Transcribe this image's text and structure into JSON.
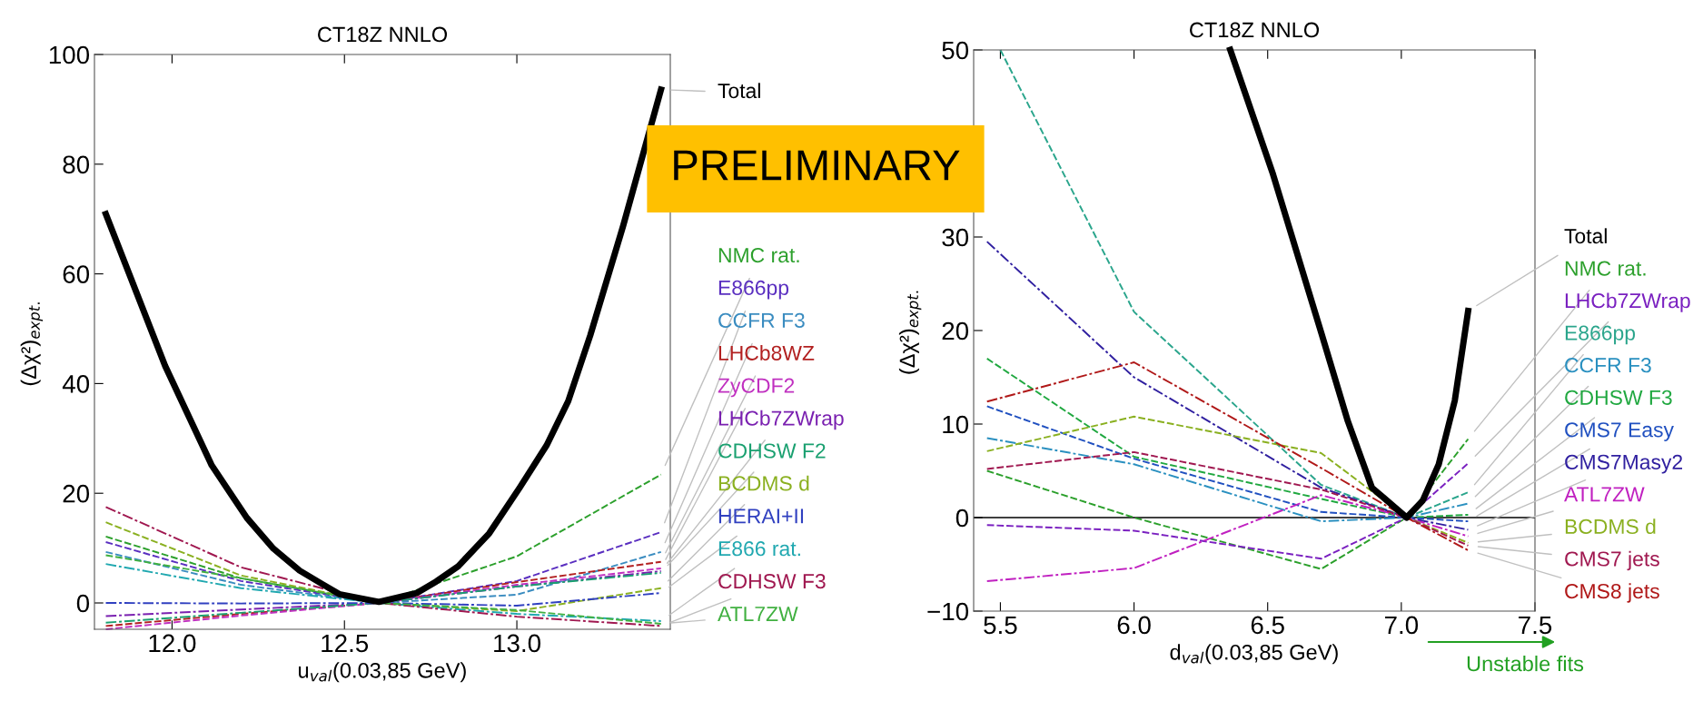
{
  "chart_data": [
    {
      "type": "line",
      "title": "CT18Z NNLO",
      "xlabel": "u$_{val}$(0.03,85 GeV)",
      "ylabel": "(Δχ²)$_{expt.}$",
      "xlim": [
        11.775,
        13.445
      ],
      "xticks": [
        {
          "value": 12.0,
          "label": "12.0"
        },
        {
          "value": 12.5,
          "label": "12.5"
        },
        {
          "value": 13.0,
          "label": "13.0"
        }
      ],
      "ylim": [
        -4.8,
        100
      ],
      "yticks": [
        0,
        20,
        40,
        60,
        80,
        100
      ],
      "grid": false,
      "legend": "right",
      "annotations": [
        "PRELIMINARY"
      ],
      "series": [
        {
          "name": "Total",
          "color": "#000000",
          "line_style": "solid",
          "x": [
            11.808,
            11.98,
            12.115,
            12.217,
            12.294,
            12.37,
            12.434,
            12.485,
            12.6,
            12.709,
            12.766,
            12.83,
            12.92,
            13.009,
            13.086,
            13.149,
            13.213,
            13.309,
            13.418
          ],
          "values": [
            70.9,
            43.2,
            25.1,
            15.5,
            9.9,
            5.9,
            3.5,
            1.6,
            0.2,
            1.8,
            3.9,
            6.7,
            12.7,
            21.1,
            28.7,
            36.8,
            48.8,
            68.9,
            93.6
          ]
        },
        {
          "name": "NMC rat.",
          "color": "#2ca02c",
          "line_style": "dashed",
          "x": [
            11.808,
            12.2,
            12.6,
            13.0,
            13.418
          ],
          "values": [
            12.1,
            4.5,
            0,
            8.5,
            23.4
          ]
        },
        {
          "name": "E866pp",
          "color": "#5a2fc0",
          "line_style": "dashed",
          "x": [
            11.808,
            12.2,
            12.6,
            13.0,
            13.418
          ],
          "values": [
            11.1,
            4.0,
            0,
            4.0,
            12.9
          ]
        },
        {
          "name": "CCFR F3",
          "color": "#3a8cc0",
          "line_style": "dashed",
          "x": [
            11.808,
            12.2,
            12.6,
            13.0,
            13.418
          ],
          "values": [
            9.3,
            3.3,
            0,
            1.5,
            9.3
          ]
        },
        {
          "name": "LHCb8WZ",
          "color": "#b22020",
          "line_style": "dashed",
          "x": [
            11.808,
            12.2,
            12.6,
            13.0,
            13.418
          ],
          "values": [
            -4.2,
            -2.0,
            0,
            3.8,
            7.5
          ]
        },
        {
          "name": "ZyCDF2",
          "color": "#c030c0",
          "line_style": "dashed",
          "x": [
            11.808,
            12.2,
            12.6,
            13.0,
            13.418
          ],
          "values": [
            -4.8,
            -2.3,
            0,
            3.3,
            6.3
          ]
        },
        {
          "name": "LHCb7ZWrap",
          "color": "#7a20b0",
          "line_style": "dashdot",
          "x": [
            11.808,
            12.2,
            12.6,
            13.0,
            13.418
          ],
          "values": [
            -2.4,
            -1.2,
            0,
            3.0,
            5.8
          ]
        },
        {
          "name": "CDHSW F2",
          "color": "#1aa070",
          "line_style": "dashdot",
          "x": [
            11.808,
            12.2,
            12.6,
            13.0,
            13.418
          ],
          "values": [
            -3.6,
            -1.8,
            0,
            3.0,
            5.5
          ]
        },
        {
          "name": "BCDMS d",
          "color": "#8ab020",
          "line_style": "dashed",
          "x": [
            11.808,
            12.2,
            12.6,
            13.0,
            13.418
          ],
          "values": [
            14.7,
            5.0,
            0,
            -1.5,
            2.7
          ]
        },
        {
          "name": "HERAI+II",
          "color": "#3040c0",
          "line_style": "dashdot",
          "x": [
            11.808,
            12.2,
            12.6,
            13.0,
            13.418
          ],
          "values": [
            0,
            -0.1,
            0,
            -0.5,
            1.8
          ]
        },
        {
          "name": "E866 rat.",
          "color": "#20a8b0",
          "line_style": "dashdot",
          "x": [
            11.808,
            12.2,
            12.6,
            13.0,
            13.418
          ],
          "values": [
            7.1,
            2.7,
            0,
            -2.0,
            -3.3
          ]
        },
        {
          "name": "CDHSW F3",
          "color": "#a01850",
          "line_style": "dashdot",
          "x": [
            11.808,
            12.2,
            12.6,
            13.0,
            13.418
          ],
          "values": [
            17.5,
            6.5,
            0,
            -2.5,
            -4.2
          ]
        },
        {
          "name": "ATL7ZW",
          "color": "#40b040",
          "line_style": "dashed",
          "x": [
            11.808,
            12.2,
            12.6,
            13.0,
            13.418
          ],
          "values": [
            8.7,
            4.5,
            0,
            -1.3,
            -3.8
          ]
        }
      ]
    },
    {
      "type": "line",
      "title": "CT18Z NNLO",
      "xlabel": "d$_{val}$(0.03,85 GeV)",
      "ylabel": "(Δχ²)$_{expt.}$",
      "xlim": [
        5.4,
        7.5
      ],
      "xticks": [
        {
          "value": 5.5,
          "label": "5.5"
        },
        {
          "value": 6.0,
          "label": "6.0"
        },
        {
          "value": 6.5,
          "label": "6.5"
        },
        {
          "value": 7.0,
          "label": "7.0"
        },
        {
          "value": 7.5,
          "label": "7.5"
        }
      ],
      "ylim": [
        -10,
        50
      ],
      "yticks": [
        {
          "value": -10,
          "label": "−10"
        },
        0,
        10,
        20,
        30,
        {
          "value": 40,
          "label": null
        },
        50
      ],
      "grid": false,
      "legend": "right",
      "ref_lines": [
        {
          "axis": "y",
          "value": 0,
          "color": "#000000"
        }
      ],
      "annotations": [
        "Unstable fits"
      ],
      "series": [
        {
          "name": "Total",
          "color": "#000000",
          "line_style": "solid",
          "x": [
            6.36,
            6.52,
            6.7,
            6.8,
            6.89,
            7.02,
            7.08,
            7.14,
            7.2,
            7.25
          ],
          "values": [
            50,
            36.7,
            19.8,
            10.3,
            3.2,
            0,
            1.8,
            5.7,
            12.5,
            22.1
          ]
        },
        {
          "name": "NMC rat.",
          "color": "#2ca02c",
          "line_style": "dashed",
          "x": [
            5.45,
            6.0,
            6.7,
            7.02,
            7.25
          ],
          "values": [
            5.0,
            0,
            -5.5,
            0,
            8.4
          ]
        },
        {
          "name": "LHCb7ZWrap",
          "color": "#7a20c0",
          "line_style": "dashed",
          "x": [
            5.45,
            6.0,
            6.7,
            7.02,
            7.25
          ],
          "values": [
            -0.8,
            -1.4,
            -4.4,
            0,
            5.8
          ]
        },
        {
          "name": "E866pp",
          "color": "#2aa58c",
          "line_style": "dashed",
          "x": [
            5.5,
            6.0,
            6.7,
            7.02,
            7.25
          ],
          "values": [
            50,
            22,
            3.5,
            0,
            2.7
          ]
        },
        {
          "name": "CCFR F3",
          "color": "#2a90c0",
          "line_style": "dashdot",
          "x": [
            5.45,
            6.0,
            6.7,
            7.02,
            7.25
          ],
          "values": [
            8.5,
            5.7,
            -0.4,
            0,
            1.5
          ]
        },
        {
          "name": "CDHSW F3",
          "color": "#20a840",
          "line_style": "dashed",
          "x": [
            5.45,
            6.0,
            6.7,
            7.02,
            7.25
          ],
          "values": [
            17,
            6.5,
            2.0,
            0,
            0.3
          ]
        },
        {
          "name": "CMS7 Easy",
          "color": "#2050c0",
          "line_style": "dashed",
          "x": [
            5.45,
            6.0,
            6.7,
            7.02,
            7.25
          ],
          "values": [
            11.9,
            6.3,
            0.6,
            0,
            -0.4
          ]
        },
        {
          "name": "CMS7Masy2",
          "color": "#3020a0",
          "line_style": "dashdot",
          "x": [
            5.45,
            6.0,
            6.7,
            7.02,
            7.25
          ],
          "values": [
            29.5,
            15,
            3.2,
            0,
            -1.3
          ]
        },
        {
          "name": "ATL7ZW",
          "color": "#c020c0",
          "line_style": "dashdot",
          "x": [
            5.45,
            6.0,
            6.7,
            7.02,
            7.25
          ],
          "values": [
            -6.8,
            -5.4,
            2.4,
            0,
            -2.0
          ]
        },
        {
          "name": "BCDMS d",
          "color": "#8ab020",
          "line_style": "dashed",
          "x": [
            5.45,
            6.0,
            6.7,
            7.02,
            7.25
          ],
          "values": [
            7.1,
            10.8,
            6.9,
            0,
            -2.7
          ]
        },
        {
          "name": "CMS7 jets",
          "color": "#a01850",
          "line_style": "dashed",
          "x": [
            5.45,
            6.0,
            6.7,
            7.02,
            7.25
          ],
          "values": [
            5.2,
            7.0,
            3.0,
            0,
            -3.0
          ]
        },
        {
          "name": "CMS8 jets",
          "color": "#b01818",
          "line_style": "dashdot",
          "x": [
            5.45,
            6.0,
            6.7,
            7.02,
            7.25
          ],
          "values": [
            12.4,
            16.6,
            5.3,
            0,
            -3.5
          ]
        }
      ]
    }
  ]
}
